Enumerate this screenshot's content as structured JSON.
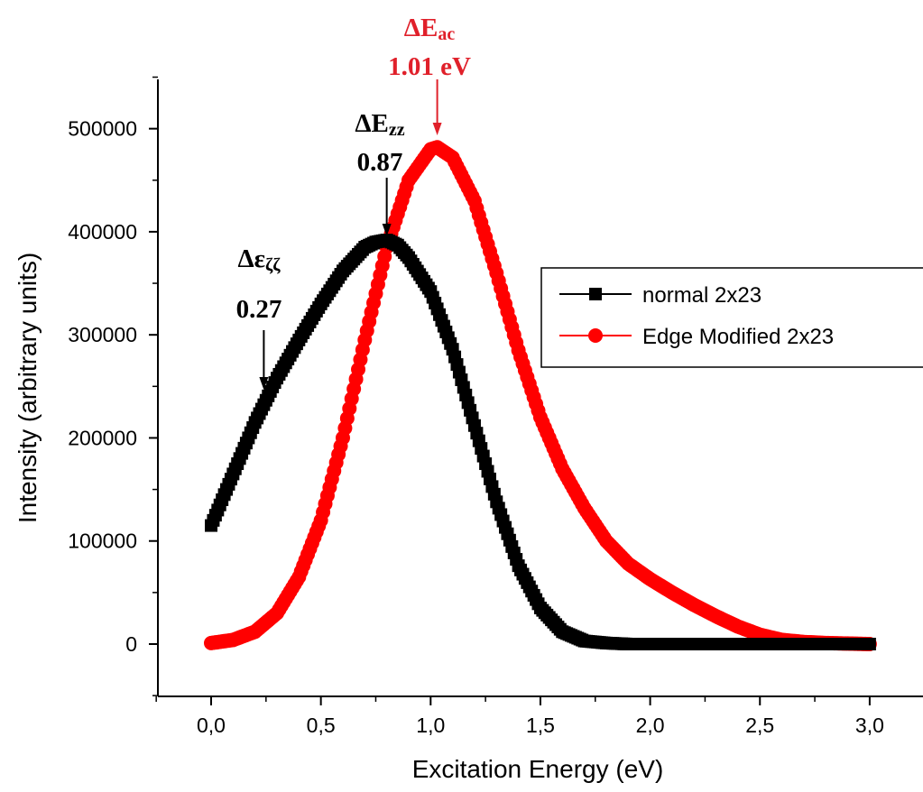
{
  "chart_data": {
    "type": "scatter",
    "xlabel": "Excitation Energy  (eV)",
    "ylabel": "Intensity  (arbitrary units)",
    "xlim": [
      -0.25,
      3.25
    ],
    "ylim": [
      -50000,
      550000
    ],
    "x_ticks": [
      "0,0",
      "0,5",
      "1,0",
      "1,5",
      "2,0",
      "2,5",
      "3,0"
    ],
    "x_tick_values": [
      0,
      0.5,
      1.0,
      1.5,
      2.0,
      2.5,
      3.0
    ],
    "y_ticks": [
      "0",
      "100000",
      "200000",
      "300000",
      "400000",
      "500000"
    ],
    "y_tick_values": [
      0,
      100000,
      200000,
      300000,
      400000,
      500000
    ],
    "legend_position": "right",
    "series": [
      {
        "name": "normal 2x23",
        "marker": "square",
        "color": "#000000",
        "x": [
          0.0,
          0.1,
          0.2,
          0.3,
          0.4,
          0.5,
          0.6,
          0.7,
          0.75,
          0.8,
          0.85,
          0.9,
          1.0,
          1.1,
          1.2,
          1.3,
          1.4,
          1.5,
          1.6,
          1.7,
          1.8,
          1.9,
          2.0,
          2.5,
          3.0
        ],
        "y": [
          115000,
          165000,
          215000,
          258000,
          295000,
          330000,
          362000,
          385000,
          390000,
          392000,
          387000,
          375000,
          342000,
          286000,
          212000,
          138000,
          76000,
          35000,
          12000,
          3000,
          1000,
          0,
          0,
          0,
          0
        ]
      },
      {
        "name": "Edge Modified 2x23",
        "marker": "circle",
        "color": "#ff0000",
        "x": [
          0.0,
          0.1,
          0.2,
          0.3,
          0.4,
          0.5,
          0.6,
          0.7,
          0.8,
          0.9,
          1.0,
          1.03,
          1.1,
          1.2,
          1.3,
          1.4,
          1.5,
          1.6,
          1.7,
          1.8,
          1.9,
          2.0,
          2.1,
          2.2,
          2.3,
          2.4,
          2.5,
          2.6,
          2.7,
          2.8,
          2.9,
          3.0
        ],
        "y": [
          1000,
          4000,
          12000,
          30000,
          65000,
          120000,
          200000,
          295000,
          385000,
          450000,
          480000,
          482000,
          472000,
          430000,
          360000,
          285000,
          220000,
          170000,
          132000,
          100000,
          78000,
          63000,
          50000,
          38000,
          27000,
          17000,
          9000,
          4000,
          2000,
          1000,
          500,
          0
        ]
      }
    ],
    "annotations": [
      {
        "main": "Δε",
        "sub": "ζζ",
        "value": "0.27",
        "x": 0.24,
        "color": "#000000"
      },
      {
        "main": "ΔE",
        "sub": "zz",
        "value": "0.87",
        "x": 0.8,
        "color": "#000000"
      },
      {
        "main": "ΔE",
        "sub": "ac",
        "value": "1.01 eV",
        "x": 1.03,
        "color": "#e0202a"
      }
    ]
  }
}
